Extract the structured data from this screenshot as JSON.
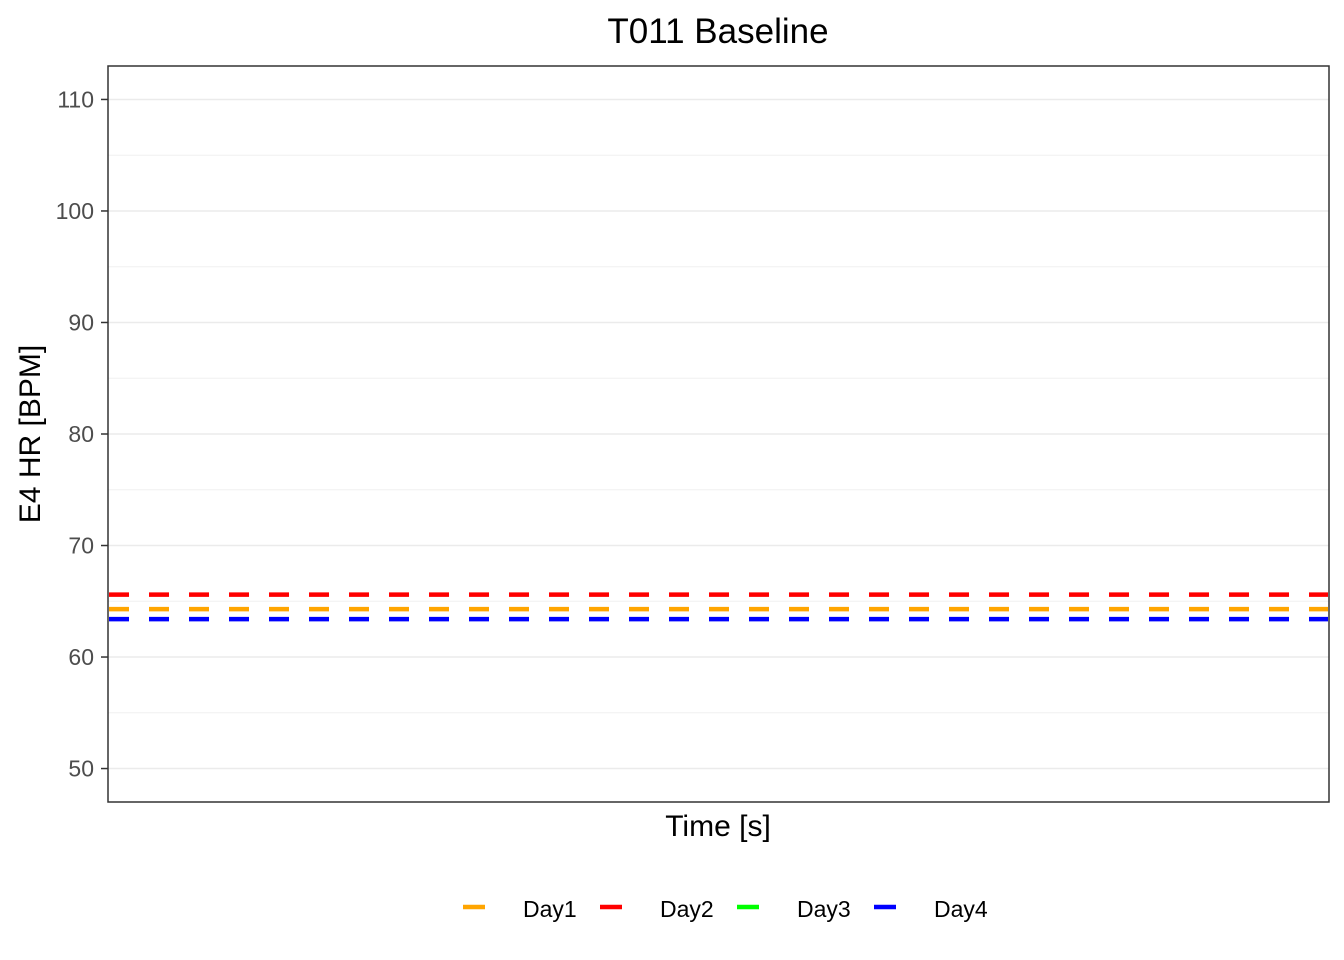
{
  "chart_data": {
    "type": "line",
    "title": "T011 Baseline",
    "xlabel": "Time [s]",
    "ylabel": "E4 HR [BPM]",
    "ylim": [
      47,
      113
    ],
    "yticks": [
      50,
      60,
      70,
      80,
      90,
      100,
      110
    ],
    "x_ticks_shown": false,
    "grid": true,
    "legend_position": "bottom",
    "series": [
      {
        "name": "Day1",
        "color": "#FFA500",
        "style": "dashed",
        "y": 64.3
      },
      {
        "name": "Day2",
        "color": "#FF0000",
        "style": "dashed",
        "y": 65.6
      },
      {
        "name": "Day3",
        "color": "#00FF00",
        "style": "dashed",
        "y": null
      },
      {
        "name": "Day4",
        "color": "#0000FF",
        "style": "dashed",
        "y": 63.4
      }
    ]
  }
}
